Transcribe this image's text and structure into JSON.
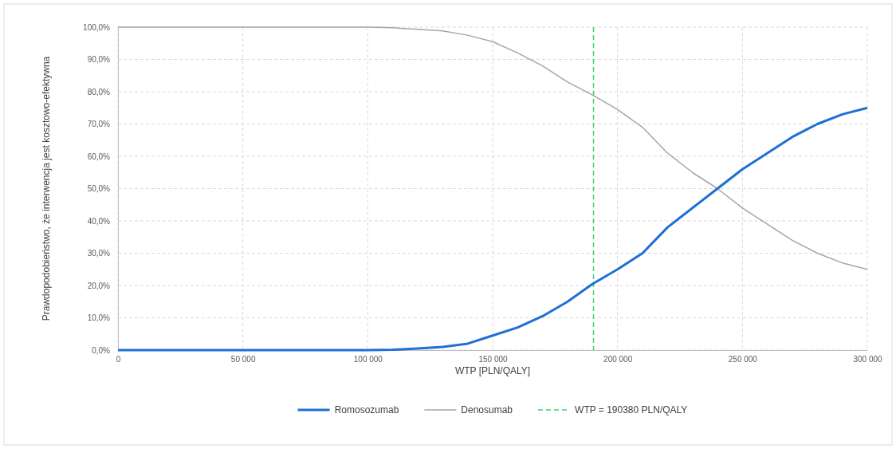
{
  "chart_data": {
    "type": "line",
    "xlabel": "WTP [PLN/QALY]",
    "ylabel": "Prawdopodobieństwo, że interwencja jest kosztowo-efektywna",
    "x": [
      0,
      10000,
      20000,
      30000,
      40000,
      50000,
      60000,
      70000,
      80000,
      90000,
      100000,
      110000,
      120000,
      130000,
      140000,
      150000,
      160000,
      170000,
      180000,
      190000,
      200000,
      210000,
      220000,
      230000,
      240000,
      250000,
      260000,
      270000,
      280000,
      290000,
      300000
    ],
    "series": [
      {
        "name": "Romosozumab",
        "color": "#1f6fd6",
        "values": [
          0,
          0,
          0,
          0,
          0,
          0,
          0,
          0,
          0,
          0,
          0,
          0.1,
          0.5,
          1,
          2,
          4.5,
          7,
          10.5,
          15,
          20.5,
          25,
          30,
          38,
          44,
          50,
          56,
          61,
          66,
          70,
          73,
          75
        ]
      },
      {
        "name": "Denosumab",
        "color": "#a6a6a6",
        "values": [
          100,
          100,
          100,
          100,
          100,
          100,
          100,
          100,
          100,
          100,
          100,
          99.8,
          99.3,
          98.8,
          97.5,
          95.5,
          92,
          88,
          83,
          79,
          74.5,
          69,
          61,
          55,
          50,
          44,
          39,
          34,
          30,
          27,
          25
        ]
      }
    ],
    "xlim": [
      0,
      300000
    ],
    "xticks": [
      0,
      {
        "value": 50000,
        "label": "50 000"
      },
      {
        "value": 100000,
        "label": "100 000"
      },
      {
        "value": 150000,
        "label": "150 000"
      },
      {
        "value": 200000,
        "label": "200 000"
      },
      {
        "value": 250000,
        "label": "250 000"
      },
      {
        "value": 300000,
        "label": "300 000"
      }
    ],
    "ylim": [
      0,
      100
    ],
    "yticks": [
      {
        "value": 0,
        "label": "0,0%"
      },
      {
        "value": 10,
        "label": "10,0%"
      },
      {
        "value": 20,
        "label": "20,0%"
      },
      {
        "value": 30,
        "label": "30,0%"
      },
      {
        "value": 40,
        "label": "40,0%"
      },
      {
        "value": 50,
        "label": "50,0%"
      },
      {
        "value": 60,
        "label": "60,0%"
      },
      {
        "value": 70,
        "label": "70,0%"
      },
      {
        "value": 80,
        "label": "80,0%"
      },
      {
        "value": 90,
        "label": "90,0%"
      },
      {
        "value": 100,
        "label": "100,0%"
      }
    ],
    "ref_lines": [
      {
        "axis": "x",
        "value": 190380,
        "label": "WTP = 190380 PLN/QALY",
        "color": "#3ad46a",
        "line_style": "dashed"
      }
    ],
    "grid": true,
    "legend": "bottom",
    "marker": "none",
    "line_style": "solid"
  }
}
